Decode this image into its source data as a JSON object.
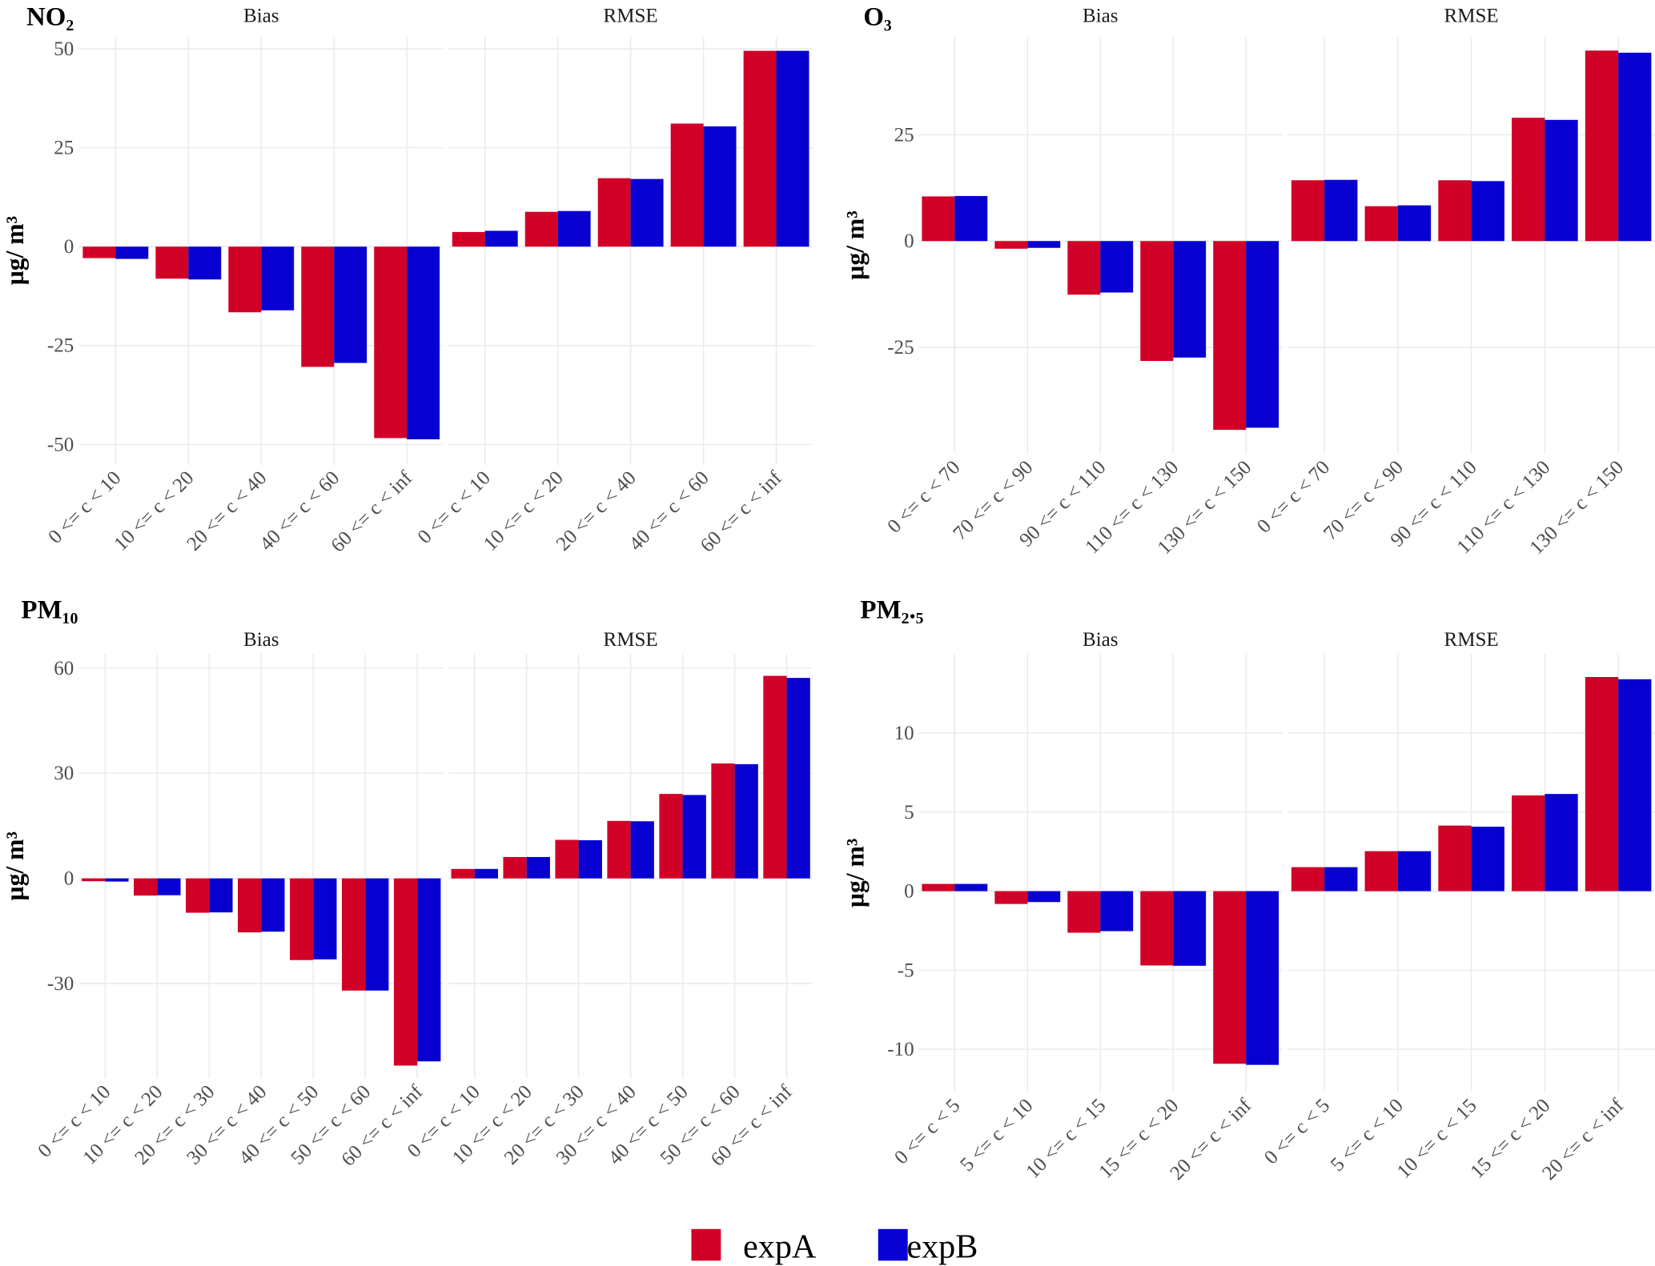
{
  "legend": {
    "items": [
      {
        "label": "expA",
        "color": "#d10027"
      },
      {
        "label": "expB",
        "color": "#0700d1"
      }
    ]
  },
  "chart_data": [
    {
      "type": "bar",
      "title": "NO₂",
      "ylabel": "µg/ m³",
      "ylim": [
        -55,
        53
      ],
      "yticks": [
        -50,
        -25,
        0,
        25,
        50
      ],
      "facets": [
        {
          "label": "Bias",
          "categories": [
            "0 <= c < 10",
            "10 <= c < 20",
            "20 <= c < 40",
            "40 <= c < 60",
            "60 <= c < inf"
          ],
          "series": [
            {
              "name": "expA",
              "values": [
                -2.9,
                -8.1,
                -16.6,
                -30.4,
                -48.4
              ]
            },
            {
              "name": "expB",
              "values": [
                -3.1,
                -8.3,
                -16.1,
                -29.4,
                -48.7
              ]
            }
          ]
        },
        {
          "label": "RMSE",
          "categories": [
            "0 <= c < 10",
            "10 <= c < 20",
            "20 <= c < 40",
            "40 <= c < 60",
            "60 <= c < inf"
          ],
          "series": [
            {
              "name": "expA",
              "values": [
                3.7,
                8.8,
                17.3,
                31.1,
                49.5
              ]
            },
            {
              "name": "expB",
              "values": [
                4.0,
                9.0,
                17.1,
                30.4,
                49.5
              ]
            }
          ]
        }
      ]
    },
    {
      "type": "bar",
      "title": "O₃",
      "ylabel": "µg/ m³",
      "ylim": [
        -50,
        48
      ],
      "yticks": [
        -25,
        0,
        25
      ],
      "facets": [
        {
          "label": "Bias",
          "categories": [
            "0 <= c < 70",
            "70 <= c < 90",
            "90 <= c < 110",
            "110 <= c < 130",
            "130 <= c < 150"
          ],
          "series": [
            {
              "name": "expA",
              "values": [
                10.5,
                -1.8,
                -12.6,
                -28.2,
                -44.4
              ]
            },
            {
              "name": "expB",
              "values": [
                10.6,
                -1.6,
                -12.1,
                -27.4,
                -43.9
              ]
            }
          ]
        },
        {
          "label": "RMSE",
          "categories": [
            "0 <= c < 70",
            "70 <= c < 90",
            "90 <= c < 110",
            "110 <= c < 130",
            "130 <= c < 150"
          ],
          "series": [
            {
              "name": "expA",
              "values": [
                14.3,
                8.2,
                14.3,
                29.0,
                44.8
              ]
            },
            {
              "name": "expB",
              "values": [
                14.4,
                8.4,
                14.1,
                28.5,
                44.3
              ]
            }
          ]
        }
      ]
    },
    {
      "type": "bar",
      "title": "PM₁₀",
      "ylabel": "µg/ m³",
      "ylim": [
        -57,
        64
      ],
      "yticks": [
        -30,
        0,
        30,
        60
      ],
      "facets": [
        {
          "label": "Bias",
          "categories": [
            "0 <= c < 10",
            "10 <= c < 20",
            "20 <= c < 30",
            "30 <= c < 40",
            "40 <= c < 50",
            "50 <= c < 60",
            "60 <= c < inf"
          ],
          "series": [
            {
              "name": "expA",
              "values": [
                -0.8,
                -4.9,
                -9.8,
                -15.4,
                -23.3,
                -32.0,
                -53.4
              ]
            },
            {
              "name": "expB",
              "values": [
                -0.9,
                -4.8,
                -9.7,
                -15.2,
                -23.1,
                -32.0,
                -52.2
              ]
            }
          ]
        },
        {
          "label": "RMSE",
          "categories": [
            "0 <= c < 10",
            "10 <= c < 20",
            "20 <= c < 30",
            "30 <= c < 40",
            "40 <= c < 50",
            "50 <= c < 60",
            "60 <= c < inf"
          ],
          "series": [
            {
              "name": "expA",
              "values": [
                2.7,
                6.1,
                11.0,
                16.4,
                24.1,
                32.8,
                57.8
              ]
            },
            {
              "name": "expB",
              "values": [
                2.7,
                6.1,
                10.9,
                16.3,
                23.8,
                32.6,
                57.2
              ]
            }
          ]
        }
      ]
    },
    {
      "type": "bar",
      "title": "PM₂.₅",
      "ylabel": "µg/ m³",
      "ylim": [
        -12.7,
        15
      ],
      "yticks": [
        -10,
        -5,
        0,
        5,
        10
      ],
      "facets": [
        {
          "label": "Bias",
          "categories": [
            "0 <= c < 5",
            "5 <= c < 10",
            "10 <= c < 15",
            "15 <= c < 20",
            "20 <= c < inf"
          ],
          "series": [
            {
              "name": "expA",
              "values": [
                0.46,
                -0.81,
                -2.63,
                -4.7,
                -10.92
              ]
            },
            {
              "name": "expB",
              "values": [
                0.46,
                -0.69,
                -2.53,
                -4.72,
                -10.99
              ]
            }
          ]
        },
        {
          "label": "RMSE",
          "categories": [
            "0 <= c < 5",
            "5 <= c < 10",
            "10 <= c < 15",
            "15 <= c < 20",
            "20 <= c < inf"
          ],
          "series": [
            {
              "name": "expA",
              "values": [
                1.52,
                2.53,
                4.15,
                6.06,
                13.55
              ]
            },
            {
              "name": "expB",
              "values": [
                1.52,
                2.53,
                4.08,
                6.15,
                13.41
              ]
            }
          ]
        }
      ]
    }
  ]
}
